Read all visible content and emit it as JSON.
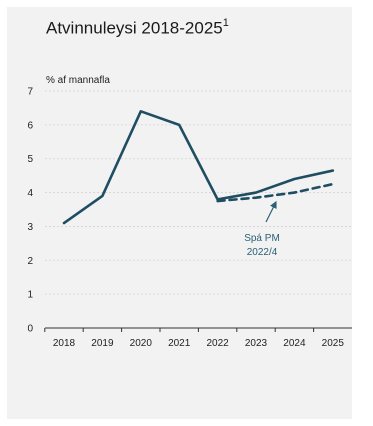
{
  "chart_data": {
    "type": "line",
    "title": "Atvinnuleysi 2018-2025",
    "title_superscript": "1",
    "ylabel": "% af mannafla",
    "ylim": [
      0,
      7
    ],
    "yticks": [
      0,
      1,
      2,
      3,
      4,
      5,
      6,
      7
    ],
    "categories": [
      "2018",
      "2019",
      "2020",
      "2021",
      "2022",
      "2023",
      "2024",
      "2025"
    ],
    "grid": true,
    "series": [
      {
        "style": "solid",
        "color": "#1f4e63",
        "values": [
          3.1,
          3.9,
          6.4,
          6.0,
          3.8,
          4.0,
          4.4,
          4.65
        ]
      },
      {
        "name": "Spá PM 2022/4",
        "style": "dashed",
        "color": "#1f4e63",
        "values": [
          null,
          null,
          null,
          null,
          3.75,
          3.85,
          4.0,
          4.25
        ]
      }
    ],
    "annotations": [
      {
        "text_lines": [
          "Spá PM",
          "2022/4"
        ],
        "color": "#2b5f73"
      }
    ]
  }
}
